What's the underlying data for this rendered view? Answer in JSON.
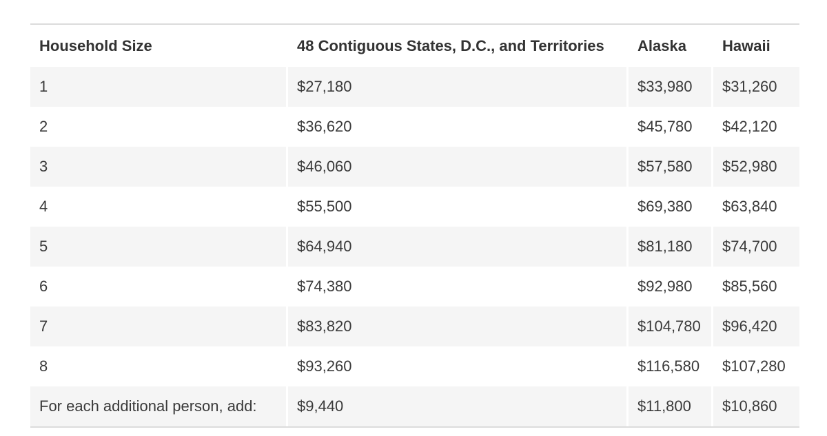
{
  "table": {
    "headers": [
      "Household Size",
      "48 Contiguous States, D.C., and Territories",
      "Alaska",
      "Hawaii"
    ],
    "rows": [
      [
        "1",
        "$27,180",
        "$33,980",
        "$31,260"
      ],
      [
        "2",
        "$36,620",
        "$45,780",
        "$42,120"
      ],
      [
        "3",
        "$46,060",
        "$57,580",
        "$52,980"
      ],
      [
        "4",
        "$55,500",
        "$69,380",
        "$63,840"
      ],
      [
        "5",
        "$64,940",
        "$81,180",
        "$74,700"
      ],
      [
        "6",
        "$74,380",
        "$92,980",
        "$85,560"
      ],
      [
        "7",
        "$83,820",
        "$104,780",
        "$96,420"
      ],
      [
        "8",
        "$93,260",
        "$116,580",
        "$107,280"
      ],
      [
        "For each additional person, add:",
        "$9,440",
        "$11,800",
        "$10,860"
      ]
    ]
  },
  "colors": {
    "text": "#3a3a3a",
    "stripe": "#f5f5f5",
    "border": "#dcdcdc"
  }
}
